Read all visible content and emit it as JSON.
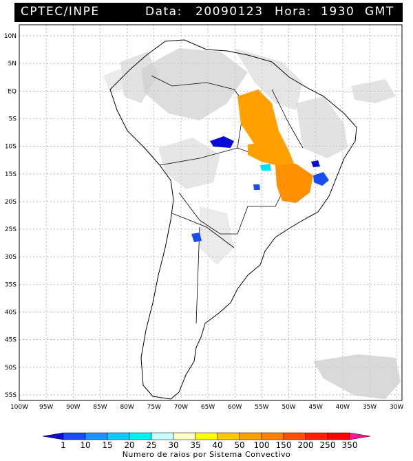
{
  "header": {
    "source": "CPTEC/INPE",
    "date_label": "Data:",
    "date_value": "20090123",
    "time_label": "Hora:",
    "time_value": "1930",
    "time_zone": "GMT"
  },
  "map": {
    "lat_labels": [
      "10N",
      "5N",
      "EQ",
      "5S",
      "10S",
      "15S",
      "20S",
      "25S",
      "30S",
      "35S",
      "40S",
      "45S",
      "50S",
      "55S"
    ],
    "lon_labels": [
      "100W",
      "95W",
      "90W",
      "85W",
      "80W",
      "75W",
      "70W",
      "65W",
      "60W",
      "55W",
      "50W",
      "45W",
      "40W",
      "35W",
      "30W"
    ],
    "lon_range": [
      -100,
      -29
    ],
    "lat_range": [
      -56,
      12
    ],
    "gridlines": true,
    "background_color": "#ffffff",
    "cloud_color": "#c8c8c8"
  },
  "colorbar": {
    "ticks": [
      "1",
      "10",
      "15",
      "20",
      "25",
      "30",
      "35",
      "40",
      "50",
      "100",
      "150",
      "200",
      "250",
      "350"
    ],
    "colors": [
      "#0a0ad6",
      "#1a4cf0",
      "#1e90ff",
      "#14c8ff",
      "#00f0f0",
      "#c8ffff",
      "#ffffc8",
      "#ffff00",
      "#ffc800",
      "#ffa000",
      "#ff8000",
      "#ff5000",
      "#ff2000",
      "#ff0000",
      "#ff1493"
    ],
    "label": "Numero de raios por Sistema Convectivo"
  }
}
